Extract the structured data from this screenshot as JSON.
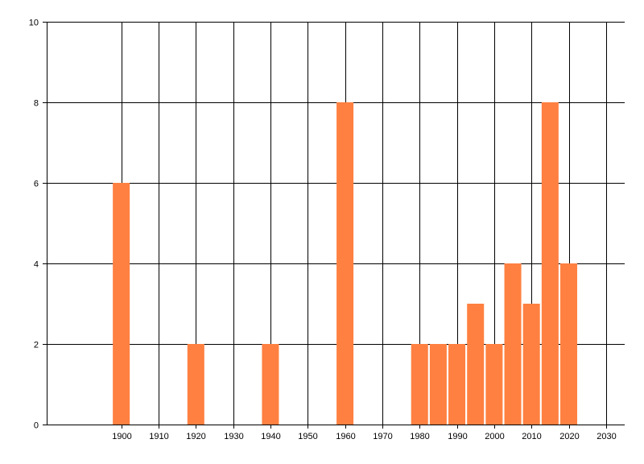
{
  "chart_data": {
    "type": "bar",
    "title": "",
    "xlabel": "",
    "ylabel": "",
    "xlim": [
      1880,
      2035
    ],
    "ylim": [
      0,
      10
    ],
    "x_ticks": [
      "1900",
      "1910",
      "1920",
      "1930",
      "1940",
      "1950",
      "1960",
      "1970",
      "1980",
      "1990",
      "2000",
      "2010",
      "2020",
      "2030"
    ],
    "y_ticks": [
      "0",
      "2",
      "4",
      "6",
      "8",
      "10"
    ],
    "grid": true,
    "legend": "none",
    "bar_color": "#FF8040",
    "series": [
      {
        "x": [
          1900,
          1920,
          1940,
          1960,
          1980,
          1985,
          1990,
          1995,
          2000,
          2005,
          2010,
          2015,
          2020
        ],
        "values": [
          6,
          2,
          2,
          8,
          2,
          2,
          2,
          3,
          2,
          4,
          3,
          8,
          4
        ]
      }
    ]
  }
}
